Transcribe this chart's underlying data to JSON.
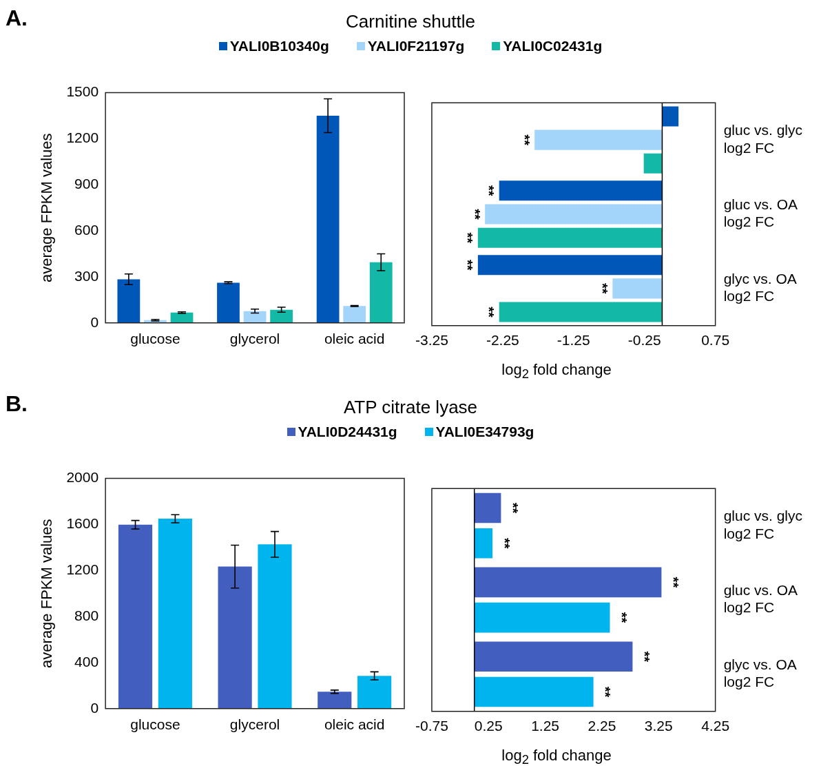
{
  "chart_data": [
    {
      "type": "bar",
      "title": "Carnitine shuttle",
      "annotations": [
        "A."
      ],
      "legend": "top",
      "ylabel": "average FPKM values",
      "categories": [
        "glucose",
        "glycerol",
        "oleic acid"
      ],
      "ylim": [
        0,
        1500
      ],
      "yticks": [
        0,
        300,
        600,
        900,
        1200,
        1500
      ],
      "series": [
        {
          "name": "YALI0B10340g",
          "color": "#0057b7",
          "values": [
            284,
            262,
            1350
          ],
          "errors": [
            35,
            6,
            110
          ]
        },
        {
          "name": "YALI0F21197g",
          "color": "#a3d5fb",
          "values": [
            18,
            77,
            110
          ],
          "errors": [
            5,
            13,
            3
          ]
        },
        {
          "name": "YALI0C02431g",
          "color": "#13b8a6",
          "values": [
            67,
            86,
            395
          ],
          "errors": [
            5,
            16,
            55
          ]
        }
      ]
    },
    {
      "type": "bar",
      "orientation": "horizontal",
      "xlabel": "log$_{2}$ fold change",
      "categories": [
        "gluc vs. glyc log2 FC",
        "gluc vs. OA log2 FC",
        "glyc vs. OA log2 FC"
      ],
      "xlim": [
        -3.25,
        0.75
      ],
      "xticks": [
        -3.25,
        -2.25,
        -1.25,
        -0.25,
        0.75
      ],
      "series": [
        {
          "color": "#0057b7",
          "values": [
            0.23,
            -2.3,
            -2.6
          ],
          "value_labels": [
            null,
            "**",
            "**"
          ]
        },
        {
          "color": "#a3d5fb",
          "values": [
            -1.8,
            -2.5,
            -0.7
          ],
          "value_labels": [
            "**",
            "**",
            "**"
          ]
        },
        {
          "color": "#13b8a6",
          "values": [
            -0.26,
            -2.6,
            -2.3
          ],
          "value_labels": [
            null,
            "**",
            "**"
          ]
        }
      ]
    },
    {
      "type": "bar",
      "title": "ATP citrate lyase",
      "annotations": [
        "B."
      ],
      "legend": "top",
      "ylabel": "average FPKM values",
      "categories": [
        "glucose",
        "glycerol",
        "oleic acid"
      ],
      "ylim": [
        0,
        2000
      ],
      "yticks": [
        0,
        400,
        800,
        1200,
        1600,
        2000
      ],
      "series": [
        {
          "name": "YALI0D24431g",
          "color": "#425fc0",
          "values": [
            1598,
            1234,
            147
          ],
          "errors": [
            37,
            186,
            14
          ]
        },
        {
          "name": "YALI0E34793g",
          "color": "#00b4ee",
          "values": [
            1650,
            1427,
            285
          ],
          "errors": [
            35,
            112,
            35
          ]
        }
      ]
    },
    {
      "type": "bar",
      "orientation": "horizontal",
      "xlabel": "log$_{2}$ fold change",
      "categories": [
        "gluc vs. glyc log2 FC",
        "gluc vs. OA log2 FC",
        "glyc vs. OA log2 FC"
      ],
      "xlim": [
        -0.75,
        4.25
      ],
      "xticks": [
        -0.75,
        0.25,
        1.25,
        2.25,
        3.25,
        4.25
      ],
      "series": [
        {
          "color": "#425fc0",
          "values": [
            0.47,
            3.3,
            2.79
          ],
          "value_labels": [
            "**",
            "**",
            "**"
          ]
        },
        {
          "color": "#00b4ee",
          "values": [
            0.32,
            2.39,
            2.1
          ],
          "value_labels": [
            "**",
            "**",
            "**"
          ]
        }
      ]
    }
  ]
}
